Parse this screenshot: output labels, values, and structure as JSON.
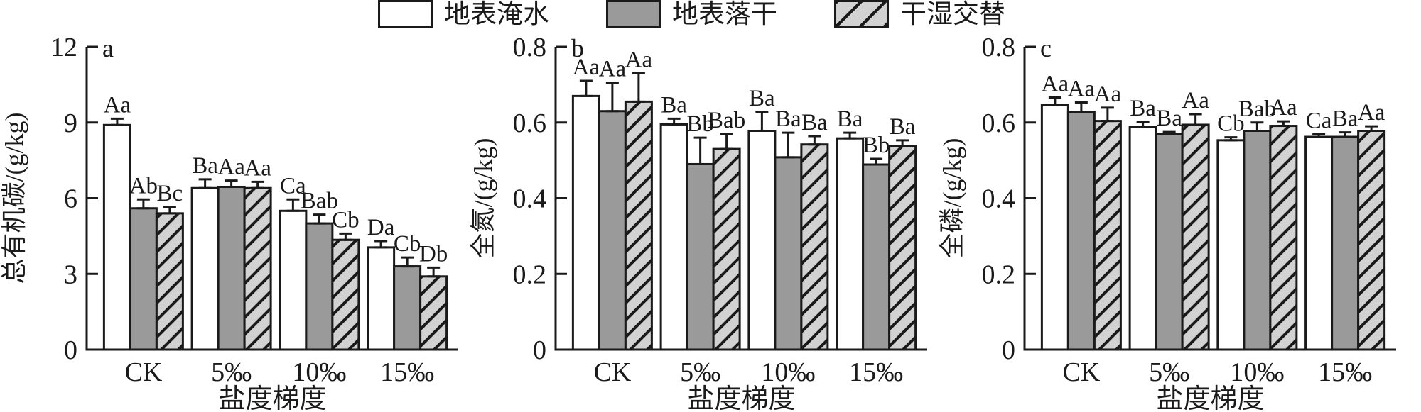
{
  "colors": {
    "line": "#1a1a1a",
    "bar_fill_flooded": "#ffffff",
    "bar_fill_drained": "#9a9a9a",
    "hatch_fill": "#d2d2d2",
    "hatch_line": "#1a1a1a",
    "background": "#ffffff"
  },
  "legend": {
    "items": [
      {
        "label": "地表淹水",
        "pattern": "solid",
        "fill": "#ffffff"
      },
      {
        "label": "地表落干",
        "pattern": "solid",
        "fill": "#9a9a9a"
      },
      {
        "label": "干湿交替",
        "pattern": "diagonal-hatch",
        "fill": "#d2d2d2"
      }
    ]
  },
  "chart_data": [
    {
      "type": "bar",
      "panel_label": "a",
      "ylabel": "总有机碳/(g/kg)",
      "xlabel": "盐度梯度",
      "categories": [
        "CK",
        "5‰",
        "10‰",
        "15‰"
      ],
      "ylim": [
        0,
        12
      ],
      "yticks": [
        0,
        3,
        6,
        9,
        12
      ],
      "ytick_labels": [
        "0",
        "3",
        "6",
        "9",
        "12"
      ],
      "grid": false,
      "legend_position": "shared-top",
      "series": [
        {
          "name": "地表淹水",
          "values": [
            8.9,
            6.4,
            5.5,
            4.05
          ],
          "errors": [
            0.25,
            0.35,
            0.45,
            0.25
          ],
          "sig_labels": [
            "Aa",
            "Ba",
            "Ca",
            "Da"
          ]
        },
        {
          "name": "地表落干",
          "values": [
            5.6,
            6.45,
            5.0,
            3.3
          ],
          "errors": [
            0.35,
            0.25,
            0.35,
            0.35
          ],
          "sig_labels": [
            "Ab",
            "Aa",
            "Bab",
            "Cb"
          ]
        },
        {
          "name": "干湿交替",
          "values": [
            5.4,
            6.4,
            4.35,
            2.9
          ],
          "errors": [
            0.25,
            0.25,
            0.25,
            0.35
          ],
          "sig_labels": [
            "Bc",
            "Aa",
            "Cb",
            "Db"
          ]
        }
      ]
    },
    {
      "type": "bar",
      "panel_label": "b",
      "ylabel": "全氮/(g/kg)",
      "xlabel": "盐度梯度",
      "categories": [
        "CK",
        "5‰",
        "10‰",
        "15‰"
      ],
      "ylim": [
        0,
        0.8
      ],
      "yticks": [
        0,
        0.2,
        0.4,
        0.6,
        0.8
      ],
      "ytick_labels": [
        "0",
        "0.2",
        "0.4",
        "0.6",
        "0.8"
      ],
      "grid": false,
      "legend_position": "shared-top",
      "series": [
        {
          "name": "地表淹水",
          "values": [
            0.67,
            0.595,
            0.578,
            0.558
          ],
          "errors": [
            0.04,
            0.015,
            0.05,
            0.015
          ],
          "sig_labels": [
            "Aa",
            "Ba",
            "Ba",
            "Ba"
          ]
        },
        {
          "name": "地表落干",
          "values": [
            0.63,
            0.49,
            0.508,
            0.489
          ],
          "errors": [
            0.075,
            0.07,
            0.065,
            0.015
          ],
          "sig_labels": [
            "Aa",
            "Bb",
            "Ba",
            "Bb"
          ]
        },
        {
          "name": "干湿交替",
          "values": [
            0.655,
            0.53,
            0.542,
            0.538
          ],
          "errors": [
            0.075,
            0.04,
            0.022,
            0.015
          ],
          "sig_labels": [
            "Aa",
            "Bab",
            "Ba",
            "Ba"
          ]
        }
      ]
    },
    {
      "type": "bar",
      "panel_label": "c",
      "ylabel": "全磷/(g/kg)",
      "xlabel": "盐度梯度",
      "categories": [
        "CK",
        "5‰",
        "10‰",
        "15‰"
      ],
      "ylim": [
        0,
        0.8
      ],
      "yticks": [
        0,
        0.2,
        0.4,
        0.6,
        0.8
      ],
      "ytick_labels": [
        "0",
        "0.2",
        "0.4",
        "0.6",
        "0.8"
      ],
      "grid": false,
      "legend_position": "shared-top",
      "series": [
        {
          "name": "地表淹水",
          "values": [
            0.646,
            0.589,
            0.553,
            0.562
          ],
          "errors": [
            0.02,
            0.012,
            0.008,
            0.007
          ],
          "sig_labels": [
            "Aa",
            "Ba",
            "Cb",
            "Ca"
          ]
        },
        {
          "name": "地表落干",
          "values": [
            0.628,
            0.57,
            0.578,
            0.562
          ],
          "errors": [
            0.025,
            0.005,
            0.022,
            0.012
          ],
          "sig_labels": [
            "Aa",
            "Ba",
            "Bab",
            "Ba"
          ]
        },
        {
          "name": "干湿交替",
          "values": [
            0.604,
            0.594,
            0.591,
            0.578
          ],
          "errors": [
            0.035,
            0.028,
            0.012,
            0.012
          ],
          "sig_labels": [
            "Aa",
            "Aa",
            "Aa",
            "Aa"
          ]
        }
      ]
    }
  ]
}
